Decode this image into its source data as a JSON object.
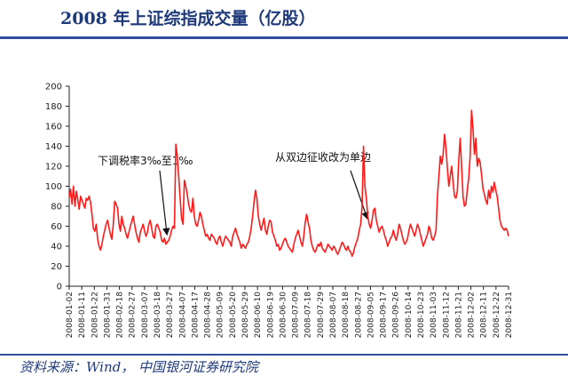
{
  "header": {
    "title": "2008 年上证综指成交量（亿股）"
  },
  "footer": {
    "source": "资料来源：Wind， 中国银河证券研究院"
  },
  "colors": {
    "line": "#ff1a1a",
    "accent": "#2d4f9e",
    "title": "#1f3a7a"
  },
  "chart_data": {
    "type": "line",
    "title": "2008 年上证综指成交量（亿股）",
    "xlabel": "",
    "ylabel": "",
    "ylim": [
      0,
      200
    ],
    "yticks": [
      0,
      20,
      40,
      60,
      80,
      100,
      120,
      140,
      160,
      180,
      200
    ],
    "grid": false,
    "legend": "none",
    "xtick_labels": [
      "2008-01-02",
      "2008-01-11",
      "2008-01-22",
      "2008-01-31",
      "2008-02-18",
      "2008-02-27",
      "2008-03-07",
      "2008-03-18",
      "2008-03-27",
      "2008-04-07",
      "2008-04-17",
      "2008-04-28",
      "2008-05-09",
      "2008-05-20",
      "2008-05-29",
      "2008-06-10",
      "2008-06-19",
      "2008-06-30",
      "2008-07-09",
      "2008-07-18",
      "2008-07-29",
      "2008-08-07",
      "2008-08-18",
      "2008-08-27",
      "2008-09-05",
      "2008-09-17",
      "2008-09-26",
      "2008-10-14",
      "2008-10-23",
      "2008-11-03",
      "2008-11-12",
      "2008-11-21",
      "2008-12-02",
      "2008-12-11",
      "2008-12-22",
      "2008-12-31"
    ],
    "series": [
      {
        "values": [
          88,
          97,
          82,
          100,
          80,
          95,
          87,
          77,
          90,
          86,
          82,
          78,
          88,
          86,
          90,
          84,
          72,
          58,
          55,
          62,
          47,
          40,
          36,
          42,
          50,
          56,
          62,
          66,
          58,
          52,
          47,
          62,
          85,
          82,
          78,
          62,
          55,
          70,
          62,
          58,
          52,
          48,
          54,
          60,
          65,
          70,
          62,
          54,
          48,
          44,
          54,
          58,
          62,
          55,
          50,
          54,
          62,
          66,
          58,
          50,
          48,
          60,
          62,
          58,
          54,
          46,
          44,
          48,
          42,
          44,
          46,
          50,
          56,
          60,
          58,
          142,
          130,
          110,
          88,
          68,
          62,
          106,
          100,
          92,
          82,
          76,
          74,
          88,
          70,
          62,
          60,
          66,
          74,
          70,
          62,
          56,
          50,
          52,
          48,
          46,
          52,
          50,
          48,
          44,
          42,
          48,
          50,
          44,
          40,
          46,
          50,
          48,
          46,
          44,
          40,
          50,
          54,
          58,
          52,
          48,
          44,
          38,
          42,
          40,
          38,
          42,
          44,
          50,
          58,
          70,
          84,
          96,
          88,
          70,
          62,
          56,
          62,
          68,
          56,
          52,
          60,
          66,
          64,
          54,
          50,
          46,
          40,
          42,
          36,
          38,
          42,
          46,
          48,
          44,
          40,
          38,
          36,
          34,
          42,
          48,
          52,
          56,
          50,
          44,
          40,
          50,
          64,
          72,
          64,
          58,
          46,
          40,
          36,
          34,
          38,
          42,
          40,
          44,
          38,
          36,
          34,
          38,
          42,
          40,
          38,
          36,
          40,
          38,
          34,
          32,
          36,
          40,
          44,
          42,
          38,
          36,
          40,
          36,
          34,
          30,
          34,
          40,
          44,
          48,
          56,
          62,
          80,
          140,
          100,
          88,
          70,
          62,
          58,
          66,
          76,
          78,
          66,
          60,
          54,
          58,
          60,
          56,
          50,
          46,
          40,
          44,
          48,
          50,
          56,
          50,
          46,
          52,
          62,
          58,
          52,
          46,
          42,
          44,
          48,
          56,
          62,
          58,
          54,
          50,
          56,
          62,
          58,
          52,
          46,
          40,
          44,
          48,
          52,
          60,
          56,
          48,
          46,
          50,
          56,
          90,
          110,
          130,
          122,
          132,
          152,
          138,
          118,
          100,
          110,
          120,
          104,
          90,
          88,
          95,
          126,
          148,
          120,
          90,
          80,
          82,
          96,
          108,
          130,
          176,
          158,
          132,
          148,
          120,
          128,
          124,
          112,
          98,
          92,
          86,
          82,
          96,
          88,
          100,
          94,
          104,
          96,
          90,
          78,
          66,
          60,
          58,
          56,
          58,
          56,
          50
        ]
      }
    ],
    "annotations": [
      {
        "text": "下调税率3‰至1‰",
        "index": 70
      },
      {
        "text": "从双边征收改为单边",
        "index": 211
      }
    ]
  }
}
